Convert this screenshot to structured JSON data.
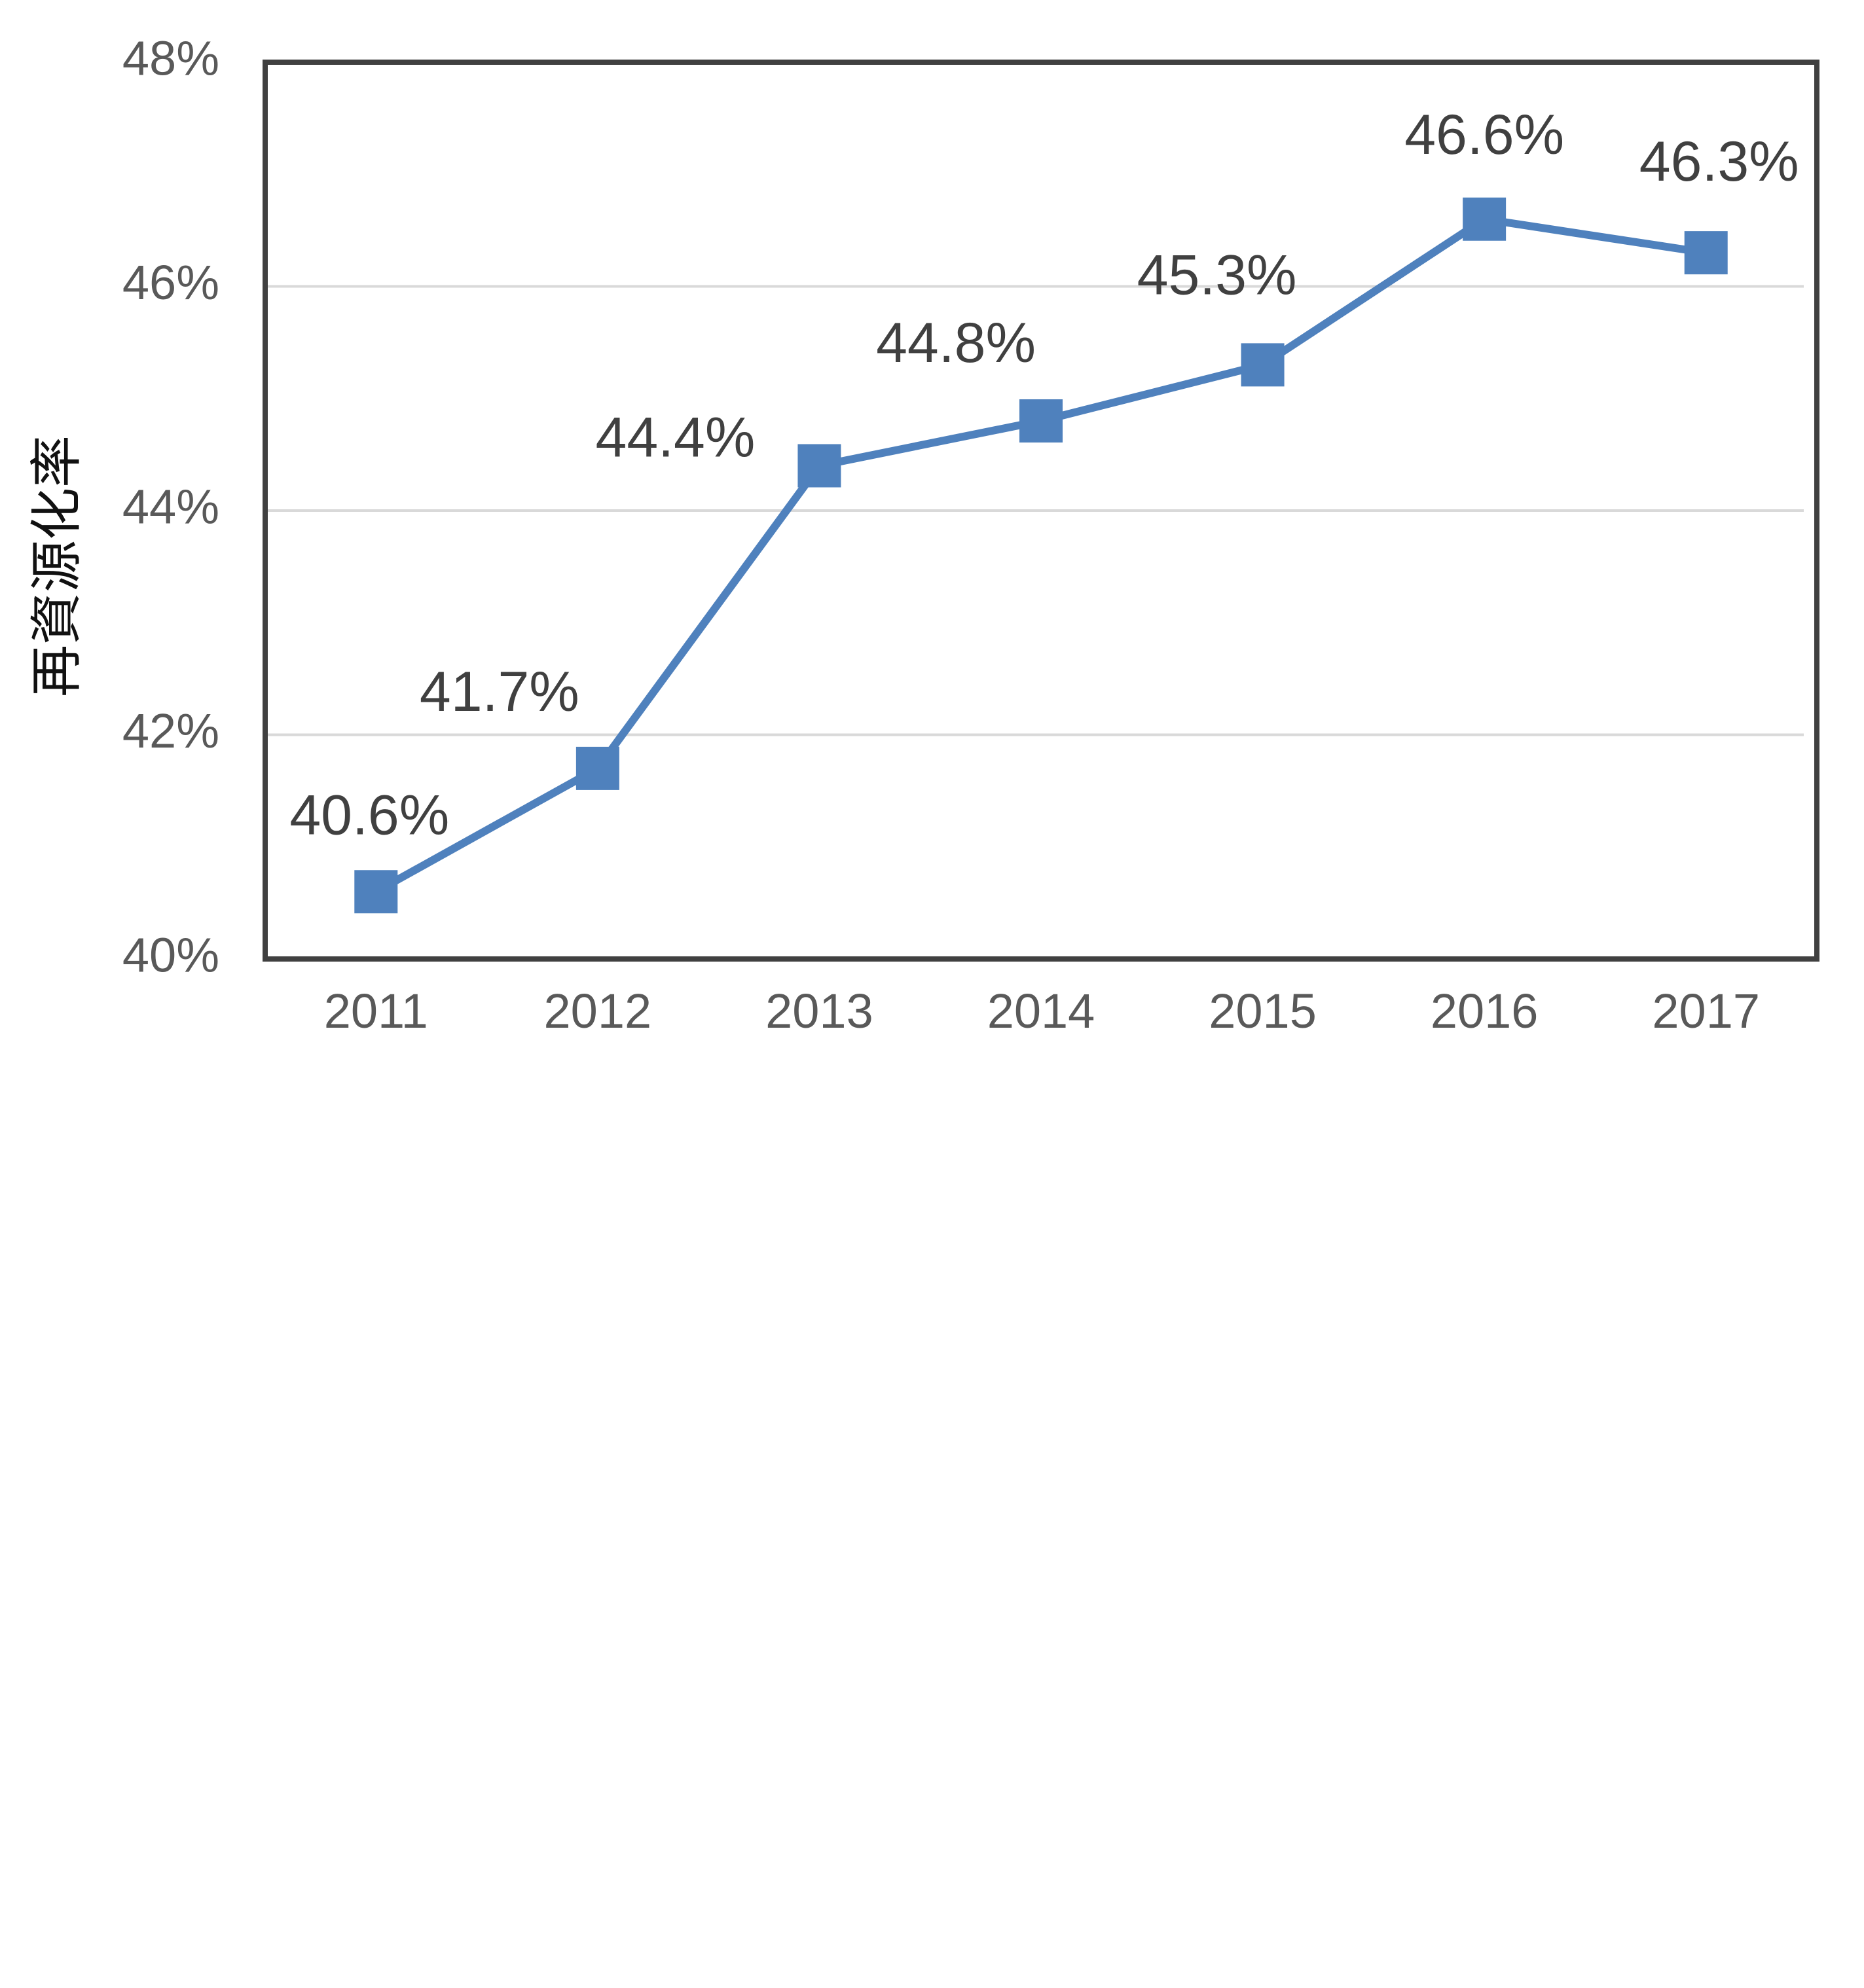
{
  "chart_data": {
    "type": "line",
    "title": "",
    "xlabel": "",
    "ylabel": "再資源化率",
    "categories": [
      "2011",
      "2012",
      "2013",
      "2014",
      "2015",
      "2016",
      "2017"
    ],
    "series": [
      {
        "values": [
          40.6,
          41.7,
          44.4,
          44.8,
          45.3,
          46.6,
          46.3
        ],
        "data_labels": [
          "40.6%",
          "41.7%",
          "44.4%",
          "44.8%",
          "45.3%",
          "46.6%",
          "46.3%"
        ],
        "color": "#4F81BD",
        "marker": "square"
      }
    ],
    "yticks": [
      {
        "value": 40,
        "label": "40%"
      },
      {
        "value": 42,
        "label": "42%"
      },
      {
        "value": 44,
        "label": "44%"
      },
      {
        "value": 46,
        "label": "46%"
      },
      {
        "value": 48,
        "label": "48%"
      }
    ],
    "ylim": [
      40,
      48
    ],
    "grid": true,
    "legend": "none"
  }
}
